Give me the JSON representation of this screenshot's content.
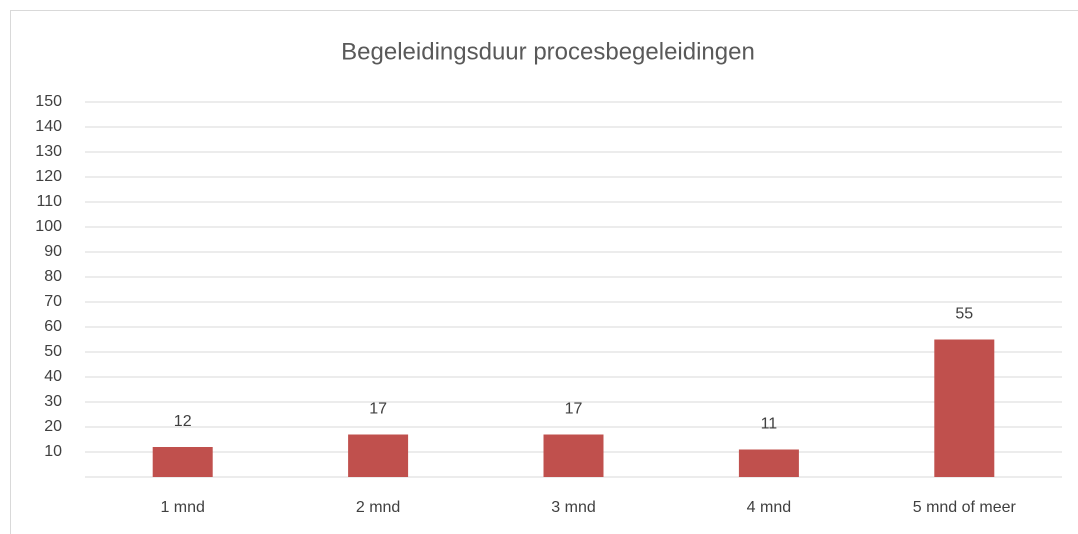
{
  "chart_data": {
    "type": "bar",
    "title": "Begeleidingsduur procesbegeleidingen",
    "categories": [
      "1 mnd",
      "2 mnd",
      "3 mnd",
      "4 mnd",
      "5 mnd of meer"
    ],
    "values": [
      12,
      17,
      17,
      11,
      55
    ],
    "color": "#c0504d",
    "ylim": [
      0,
      150
    ],
    "yticks": [
      10,
      20,
      30,
      40,
      50,
      60,
      70,
      80,
      90,
      100,
      110,
      120,
      130,
      140,
      150
    ],
    "grid": true
  }
}
